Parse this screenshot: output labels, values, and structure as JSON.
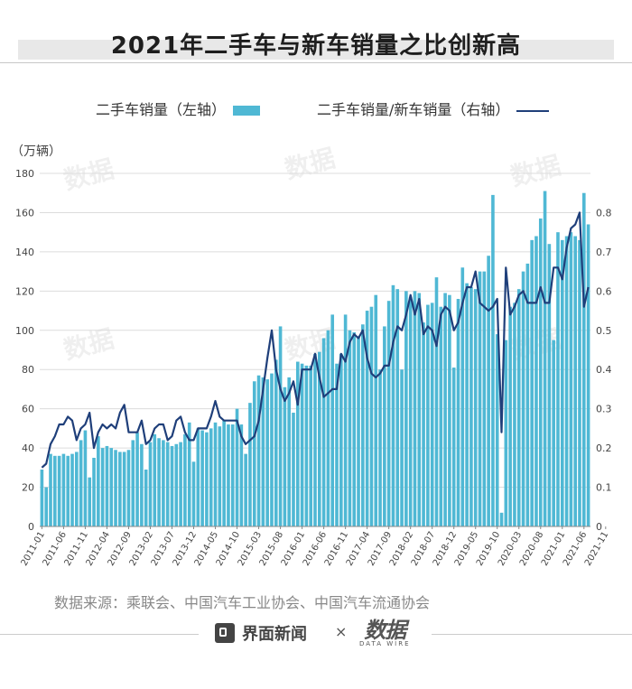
{
  "page": {
    "title": "2021年二手车与新车销量之比创新高",
    "source": "数据来源：乘联会、中国汽车工业协会、中国汽车流通协会",
    "brand": "界面新闻",
    "times": "×",
    "datawire_main": "数据",
    "datawire_sub": "DATA WIRE",
    "watermark": "数据"
  },
  "colors": {
    "bar": "#4fb8d4",
    "line": "#1f3f7a",
    "grid": "#dcdcdc",
    "axis_text": "#444444"
  },
  "chart_data": {
    "type": "bar+line",
    "title": "2021年二手车与新车销量之比创新高",
    "unit_left": "（万辆）",
    "left_axis": {
      "min": 0,
      "max": 180,
      "ticks": [
        0,
        20,
        40,
        60,
        80,
        100,
        120,
        140,
        160,
        180
      ]
    },
    "right_axis": {
      "min": 0,
      "max": 0.9,
      "ticks": [
        "0",
        "0.1",
        "0.2",
        "0.3",
        "0.4",
        "0.5",
        "0.6",
        "0.7",
        "0.8"
      ]
    },
    "x_tick_labels": [
      "2011-01",
      "2011-06",
      "2011-11",
      "2012-04",
      "2012-09",
      "2013-02",
      "2013-07",
      "2013-12",
      "2014-05",
      "2014-10",
      "2015-03",
      "2015-08",
      "2016-01",
      "2016-06",
      "2016-11",
      "2017-04",
      "2017-09",
      "2018-02",
      "2018-07",
      "2018-12",
      "2019-05",
      "2019-10",
      "2020-03",
      "2020-08",
      "2021-01",
      "2021-06",
      "2021-11"
    ],
    "x_tick_step": 5,
    "series": [
      {
        "name": "二手车销量（左轴）",
        "type": "bar",
        "axis": "left",
        "values": [
          29,
          20,
          37,
          36,
          36,
          37,
          36,
          37,
          38,
          44,
          49,
          25,
          35,
          46,
          40,
          41,
          40,
          39,
          38,
          38,
          39,
          44,
          48,
          42,
          29,
          43,
          47,
          45,
          44,
          43,
          41,
          42,
          43,
          47,
          53,
          33,
          50,
          49,
          48,
          50,
          53,
          51,
          54,
          52,
          52,
          60,
          52,
          37,
          63,
          74,
          77,
          76,
          75,
          78,
          85,
          102,
          71,
          76,
          58,
          84,
          83,
          82,
          82,
          88,
          89,
          96,
          100,
          108,
          83,
          88,
          108,
          100,
          99,
          97,
          103,
          110,
          112,
          118,
          80,
          102,
          115,
          123,
          121,
          80,
          120,
          117,
          120,
          119,
          104,
          113,
          114,
          127,
          112,
          119,
          118,
          81,
          116,
          132,
          124,
          122,
          121,
          130,
          130,
          138,
          169,
          98,
          7,
          95,
          112,
          114,
          121,
          130,
          134,
          146,
          148,
          157,
          171,
          144,
          95,
          150,
          146,
          148,
          150,
          148,
          146,
          170,
          154
        ]
      },
      {
        "name": "二手车销量/新车销量（右轴）",
        "type": "line",
        "axis": "right",
        "values": [
          0.15,
          0.16,
          0.21,
          0.23,
          0.26,
          0.26,
          0.28,
          0.27,
          0.22,
          0.25,
          0.26,
          0.29,
          0.2,
          0.24,
          0.26,
          0.25,
          0.26,
          0.25,
          0.29,
          0.31,
          0.24,
          0.24,
          0.24,
          0.27,
          0.21,
          0.22,
          0.25,
          0.26,
          0.26,
          0.22,
          0.23,
          0.27,
          0.28,
          0.24,
          0.22,
          0.22,
          0.25,
          0.25,
          0.25,
          0.28,
          0.32,
          0.28,
          0.27,
          0.27,
          0.27,
          0.27,
          0.23,
          0.21,
          0.22,
          0.23,
          0.27,
          0.35,
          0.43,
          0.5,
          0.4,
          0.35,
          0.32,
          0.34,
          0.37,
          0.31,
          0.4,
          0.4,
          0.4,
          0.44,
          0.38,
          0.33,
          0.34,
          0.35,
          0.35,
          0.44,
          0.42,
          0.47,
          0.49,
          0.48,
          0.5,
          0.43,
          0.39,
          0.38,
          0.39,
          0.41,
          0.41,
          0.47,
          0.51,
          0.5,
          0.54,
          0.59,
          0.54,
          0.58,
          0.49,
          0.51,
          0.5,
          0.46,
          0.54,
          0.56,
          0.55,
          0.5,
          0.52,
          0.57,
          0.61,
          0.61,
          0.65,
          0.57,
          0.56,
          0.55,
          0.56,
          0.58,
          0.24,
          0.66,
          0.54,
          0.56,
          0.59,
          0.6,
          0.57,
          0.57,
          0.57,
          0.61,
          0.57,
          0.57,
          0.66,
          0.66,
          0.63,
          0.71,
          0.76,
          0.77,
          0.8,
          0.56,
          0.61
        ]
      }
    ]
  }
}
